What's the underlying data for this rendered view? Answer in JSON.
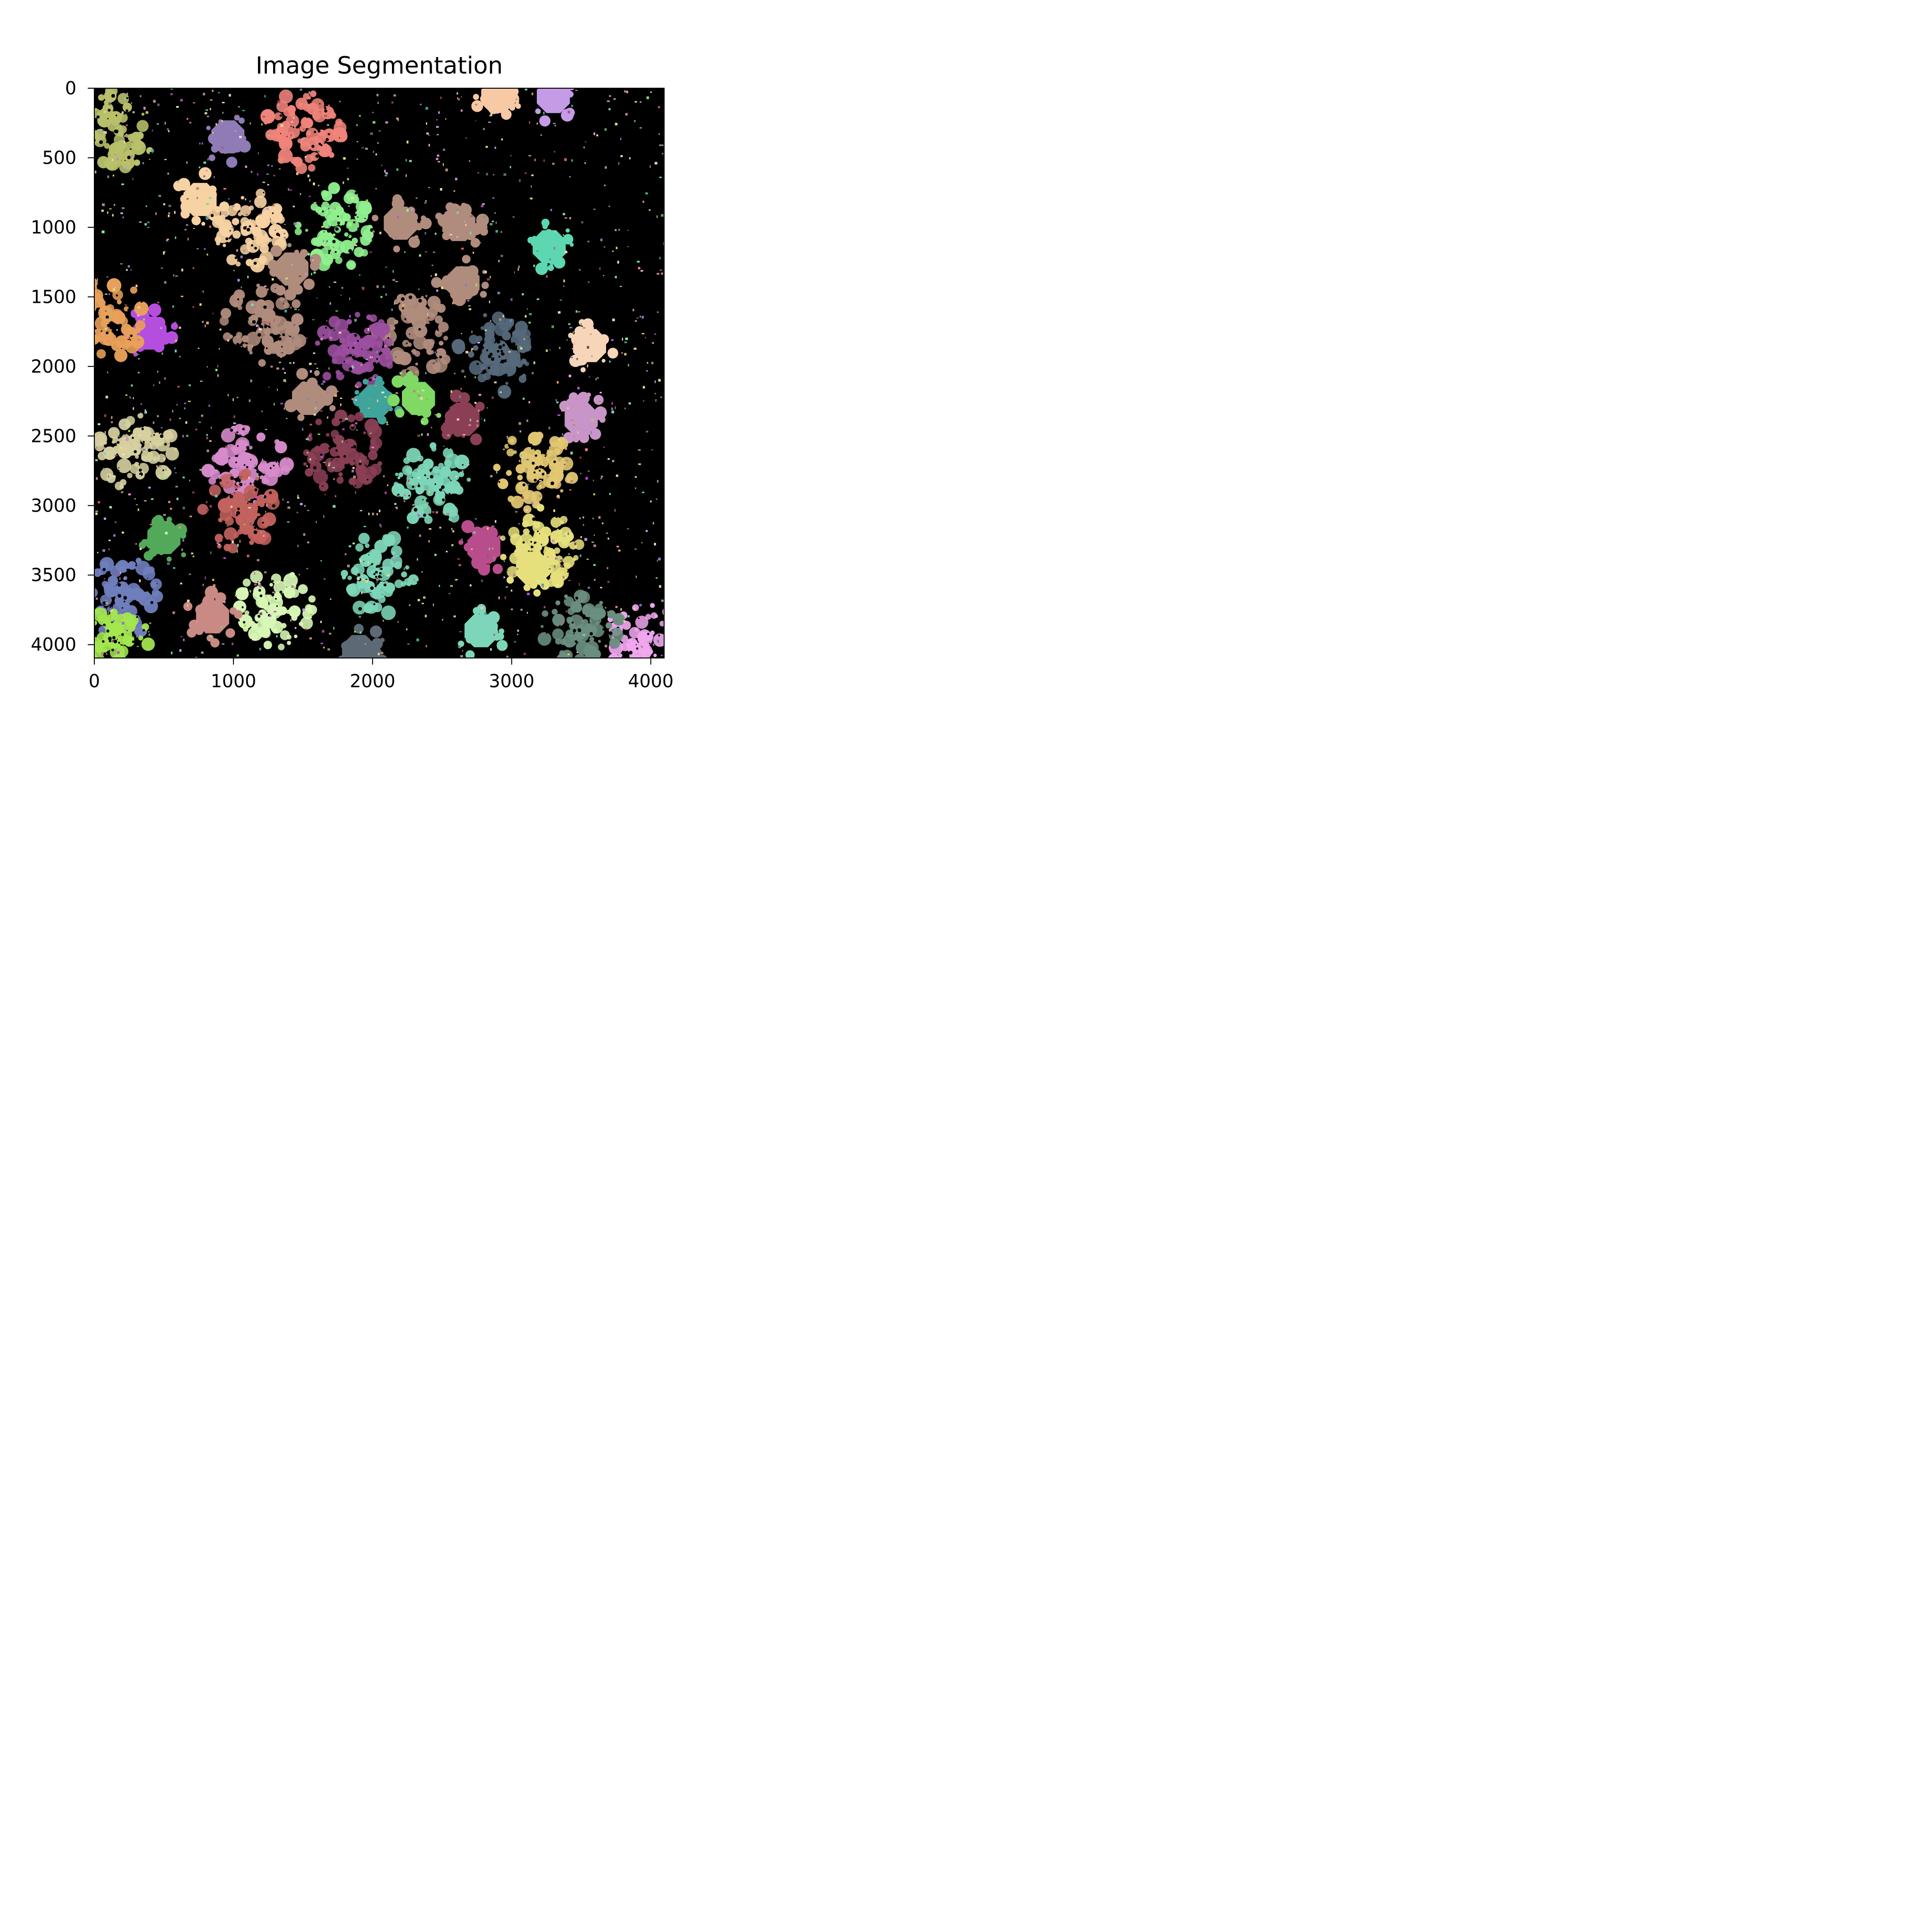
{
  "chart_data": {
    "type": "heatmap",
    "title": "Image Segmentation",
    "xlabel": "",
    "ylabel": "",
    "xlim": [
      0,
      4096
    ],
    "ylim": [
      4096,
      0
    ],
    "xticks": [
      0,
      1000,
      2000,
      3000,
      4000
    ],
    "xtick_labels": [
      "0",
      "1000",
      "2000",
      "3000",
      "4000"
    ],
    "yticks": [
      0,
      500,
      1000,
      1500,
      2000,
      2500,
      3000,
      3500,
      4000
    ],
    "ytick_labels": [
      "0",
      "500",
      "1000",
      "1500",
      "2000",
      "2500",
      "3000",
      "3500",
      "4000"
    ],
    "background_color": "#000000",
    "grid": false,
    "legend": "none",
    "segments": [
      {
        "x": 180,
        "y": 300,
        "color": "#b9c06b",
        "shape": "blob"
      },
      {
        "x": 960,
        "y": 350,
        "color": "#8f7bb5",
        "shape": "disc"
      },
      {
        "x": 1500,
        "y": 300,
        "color": "#f0837a",
        "shape": "blob"
      },
      {
        "x": 2900,
        "y": 60,
        "color": "#f7c9a4",
        "shape": "disc"
      },
      {
        "x": 3300,
        "y": 60,
        "color": "#c59ae6",
        "shape": "disc"
      },
      {
        "x": 760,
        "y": 800,
        "color": "#f7d2a3",
        "shape": "disc"
      },
      {
        "x": 1100,
        "y": 1000,
        "color": "#f7d2a3",
        "shape": "blob"
      },
      {
        "x": 1750,
        "y": 1000,
        "color": "#90f08f",
        "shape": "blob"
      },
      {
        "x": 2200,
        "y": 970,
        "color": "#b08c7d",
        "shape": "disc"
      },
      {
        "x": 2620,
        "y": 980,
        "color": "#b08c7d",
        "shape": "disc"
      },
      {
        "x": 3270,
        "y": 1140,
        "color": "#5dd7b2",
        "shape": "disc"
      },
      {
        "x": 1420,
        "y": 1300,
        "color": "#b08c7d",
        "shape": "disc"
      },
      {
        "x": 2650,
        "y": 1400,
        "color": "#b08c7d",
        "shape": "disc"
      },
      {
        "x": 1220,
        "y": 1700,
        "color": "#b08c7d",
        "shape": "blob"
      },
      {
        "x": 2300,
        "y": 1780,
        "color": "#b08c7d",
        "shape": "blob"
      },
      {
        "x": 400,
        "y": 1760,
        "color": "#b54ede",
        "shape": "disc"
      },
      {
        "x": 100,
        "y": 1650,
        "color": "#e8a15a",
        "shape": "blob"
      },
      {
        "x": 1880,
        "y": 1900,
        "color": "#9b4f9e",
        "shape": "blob"
      },
      {
        "x": 2900,
        "y": 1900,
        "color": "#55697a",
        "shape": "blob"
      },
      {
        "x": 3560,
        "y": 1850,
        "color": "#f7d5b9",
        "shape": "disc"
      },
      {
        "x": 2020,
        "y": 2250,
        "color": "#3fa59b",
        "shape": "disc"
      },
      {
        "x": 2330,
        "y": 2230,
        "color": "#7fd964",
        "shape": "disc"
      },
      {
        "x": 1540,
        "y": 2230,
        "color": "#b08c7d",
        "shape": "disc"
      },
      {
        "x": 3500,
        "y": 2380,
        "color": "#c995c9",
        "shape": "disc"
      },
      {
        "x": 2650,
        "y": 2380,
        "color": "#8a3f55",
        "shape": "disc"
      },
      {
        "x": 1780,
        "y": 2620,
        "color": "#8a3f55",
        "shape": "blob"
      },
      {
        "x": 3170,
        "y": 2750,
        "color": "#e2c772",
        "shape": "blob"
      },
      {
        "x": 1100,
        "y": 2700,
        "color": "#d78bcb",
        "shape": "blob"
      },
      {
        "x": 2450,
        "y": 2850,
        "color": "#7dd6b9",
        "shape": "blob"
      },
      {
        "x": 300,
        "y": 2600,
        "color": "#d6d0a0",
        "shape": "blob"
      },
      {
        "x": 1050,
        "y": 3050,
        "color": "#c3625e",
        "shape": "blob"
      },
      {
        "x": 500,
        "y": 3230,
        "color": "#52a95a",
        "shape": "disc"
      },
      {
        "x": 2800,
        "y": 3300,
        "color": "#b94d8b",
        "shape": "disc"
      },
      {
        "x": 3200,
        "y": 3300,
        "color": "#e6e07c",
        "shape": "blob"
      },
      {
        "x": 3150,
        "y": 3450,
        "color": "#e6e07c",
        "shape": "disc"
      },
      {
        "x": 2050,
        "y": 3500,
        "color": "#7dd6b9",
        "shape": "blob"
      },
      {
        "x": 1300,
        "y": 3750,
        "color": "#d8f7b6",
        "shape": "blob"
      },
      {
        "x": 850,
        "y": 3800,
        "color": "#c98a83",
        "shape": "disc"
      },
      {
        "x": 200,
        "y": 3650,
        "color": "#6f7fbd",
        "shape": "blob"
      },
      {
        "x": 2780,
        "y": 3900,
        "color": "#7dd6b9",
        "shape": "disc"
      },
      {
        "x": 1900,
        "y": 4050,
        "color": "#5d6a75",
        "shape": "disc"
      },
      {
        "x": 120,
        "y": 3980,
        "color": "#a4e64f",
        "shape": "blob"
      },
      {
        "x": 3950,
        "y": 3950,
        "color": "#f1a7f0",
        "shape": "blob"
      },
      {
        "x": 3500,
        "y": 3900,
        "color": "#6b8f80",
        "shape": "blob"
      }
    ]
  }
}
